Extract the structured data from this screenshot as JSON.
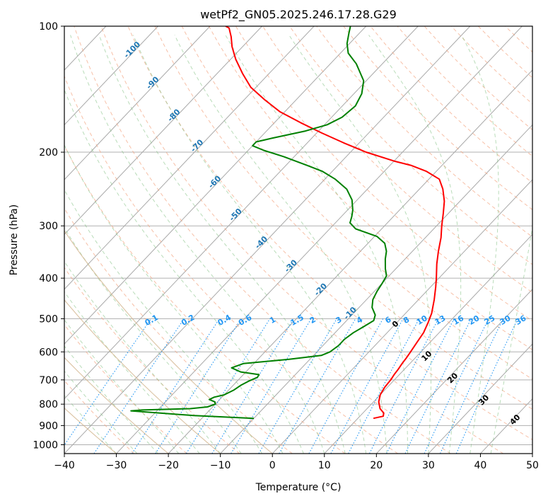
{
  "chart_data": {
    "type": "line",
    "subtype": "skew-T log-P diagram",
    "title": "wetPf2_GN05.2025.246.17.28.G29",
    "xlabel": "Temperature (°C)",
    "ylabel": "Pressure (hPa)",
    "xlim": [
      -40,
      50
    ],
    "ylim": [
      1050,
      100
    ],
    "y_scale": "log",
    "grid": true,
    "x_ticks": [
      "−40",
      "−30",
      "−20",
      "−10",
      "0",
      "10",
      "20",
      "30",
      "40",
      "50"
    ],
    "y_ticks": [
      {
        "p": 100,
        "label": "100"
      },
      {
        "p": 200,
        "label": "200"
      },
      {
        "p": 300,
        "label": "300"
      },
      {
        "p": 400,
        "label": "400"
      },
      {
        "p": 500,
        "label": "500"
      },
      {
        "p": 600,
        "label": "600"
      },
      {
        "p": 700,
        "label": "700"
      },
      {
        "p": 800,
        "label": "800"
      },
      {
        "p": 900,
        "label": "900"
      },
      {
        "p": 1000,
        "label": "1000"
      }
    ],
    "isotherm_labels": [
      {
        "t": -100,
        "label": "-100"
      },
      {
        "t": -90,
        "label": "-90"
      },
      {
        "t": -80,
        "label": "-80"
      },
      {
        "t": -70,
        "label": "-70"
      },
      {
        "t": -60,
        "label": "-60"
      },
      {
        "t": -50,
        "label": "-50"
      },
      {
        "t": -40,
        "label": "-40"
      },
      {
        "t": -30,
        "label": "-30"
      },
      {
        "t": -20,
        "label": "-20"
      },
      {
        "t": -10,
        "label": "-10"
      }
    ],
    "mixing_ratio_labels": [
      {
        "x": -23.0,
        "label": "0.1"
      },
      {
        "x": -16.0,
        "label": "0.2"
      },
      {
        "x": -9.0,
        "label": "0.4"
      },
      {
        "x": -5.0,
        "label": "0.6"
      },
      {
        "x": 0.3,
        "label": "1"
      },
      {
        "x": 5.0,
        "label": "1.5"
      },
      {
        "x": 8.0,
        "label": "2"
      },
      {
        "x": 13.0,
        "label": "3"
      },
      {
        "x": 17.0,
        "label": "4"
      },
      {
        "x": 22.5,
        "label": "6"
      },
      {
        "x": 26.0,
        "label": "8"
      },
      {
        "x": 29.0,
        "label": "10"
      },
      {
        "x": 32.5,
        "label": "13"
      },
      {
        "x": 36.0,
        "label": "16"
      },
      {
        "x": 39.0,
        "label": "20"
      },
      {
        "x": 42.0,
        "label": "25"
      },
      {
        "x": 45.0,
        "label": "30"
      },
      {
        "x": 48.0,
        "label": "36"
      }
    ],
    "theta_e_labels": [
      {
        "x": 24,
        "p": 520,
        "label": "0",
        "color": "#7f7f7f"
      },
      {
        "x": 30,
        "p": 620,
        "label": "10",
        "color": "#d62728"
      },
      {
        "x": 35,
        "p": 700,
        "label": "20",
        "color": "#d62728"
      },
      {
        "x": 41,
        "p": 790,
        "label": "30",
        "color": "#d62728"
      },
      {
        "x": 47,
        "p": 880,
        "label": "40",
        "color": "#d62728"
      }
    ],
    "series": [
      {
        "kind": "temperature",
        "color": "#ff0000",
        "points": [
          [
            13.0,
            865
          ],
          [
            14.5,
            855
          ],
          [
            14.0,
            840
          ],
          [
            12.5,
            820
          ],
          [
            11.0,
            790
          ],
          [
            10.0,
            760
          ],
          [
            9.5,
            730
          ],
          [
            9.3,
            700
          ],
          [
            9.0,
            680
          ],
          [
            8.8,
            660
          ],
          [
            8.5,
            640
          ],
          [
            8.3,
            620
          ],
          [
            8.0,
            600
          ],
          [
            7.5,
            570
          ],
          [
            7.0,
            540
          ],
          [
            6.0,
            510
          ],
          [
            5.0,
            485
          ],
          [
            3.0,
            450
          ],
          [
            1.0,
            420
          ],
          [
            -0.5,
            400
          ],
          [
            -3.0,
            370
          ],
          [
            -5.0,
            345
          ],
          [
            -7.0,
            320
          ],
          [
            -9.0,
            300
          ],
          [
            -11.0,
            280
          ],
          [
            -13.0,
            262
          ],
          [
            -15.5,
            245
          ],
          [
            -18.0,
            232
          ],
          [
            -22.0,
            222
          ],
          [
            -26.0,
            215
          ],
          [
            -30.0,
            210
          ],
          [
            -37.0,
            200
          ],
          [
            -43.0,
            190
          ],
          [
            -49.0,
            180
          ],
          [
            -55.0,
            170
          ],
          [
            -61.0,
            160
          ],
          [
            -66.0,
            150
          ],
          [
            -71.0,
            140
          ],
          [
            -75.0,
            130
          ],
          [
            -79.0,
            120
          ],
          [
            -82.0,
            112
          ],
          [
            -84.0,
            106
          ],
          [
            -86.0,
            101
          ],
          [
            -87.0,
            100
          ]
        ]
      },
      {
        "kind": "dewpoint",
        "color": "#008000",
        "points": [
          [
            -10.0,
            865
          ],
          [
            -22.0,
            852
          ],
          [
            -35.0,
            830
          ],
          [
            -33.0,
            826
          ],
          [
            -24.0,
            820
          ],
          [
            -21.0,
            812
          ],
          [
            -20.0,
            800
          ],
          [
            -20.5,
            790
          ],
          [
            -22.0,
            780
          ],
          [
            -21.5,
            770
          ],
          [
            -20.0,
            760
          ],
          [
            -19.0,
            740
          ],
          [
            -18.5,
            720
          ],
          [
            -17.8,
            705
          ],
          [
            -16.8,
            690
          ],
          [
            -17.0,
            680
          ],
          [
            -21.0,
            670
          ],
          [
            -23.5,
            655
          ],
          [
            -22.0,
            640
          ],
          [
            -14.0,
            625
          ],
          [
            -8.5,
            612
          ],
          [
            -7.5,
            600
          ],
          [
            -7.0,
            580
          ],
          [
            -7.0,
            560
          ],
          [
            -6.5,
            540
          ],
          [
            -5.5,
            520
          ],
          [
            -4.8,
            505
          ],
          [
            -5.5,
            490
          ],
          [
            -7.5,
            470
          ],
          [
            -8.8,
            450
          ],
          [
            -9.5,
            430
          ],
          [
            -10.0,
            410
          ],
          [
            -10.5,
            395
          ],
          [
            -12.0,
            380
          ],
          [
            -13.8,
            360
          ],
          [
            -15.0,
            345
          ],
          [
            -16.8,
            330
          ],
          [
            -19.5,
            318
          ],
          [
            -25.0,
            305
          ],
          [
            -27.2,
            295
          ],
          [
            -28.0,
            285
          ],
          [
            -29.0,
            275
          ],
          [
            -31.0,
            260
          ],
          [
            -34.0,
            245
          ],
          [
            -38.0,
            232
          ],
          [
            -42.0,
            222
          ],
          [
            -46.0,
            215
          ],
          [
            -52.0,
            205
          ],
          [
            -57.0,
            198
          ],
          [
            -60.0,
            193
          ],
          [
            -60.0,
            189
          ],
          [
            -57.5,
            185
          ],
          [
            -52.5,
            178
          ],
          [
            -49.5,
            172
          ],
          [
            -48.0,
            165
          ],
          [
            -47.5,
            155
          ],
          [
            -48.5,
            145
          ],
          [
            -50.5,
            135
          ],
          [
            -55.0,
            123
          ],
          [
            -58.5,
            116
          ],
          [
            -60.5,
            110
          ],
          [
            -62.0,
            104
          ],
          [
            -63.0,
            100
          ]
        ]
      }
    ]
  }
}
